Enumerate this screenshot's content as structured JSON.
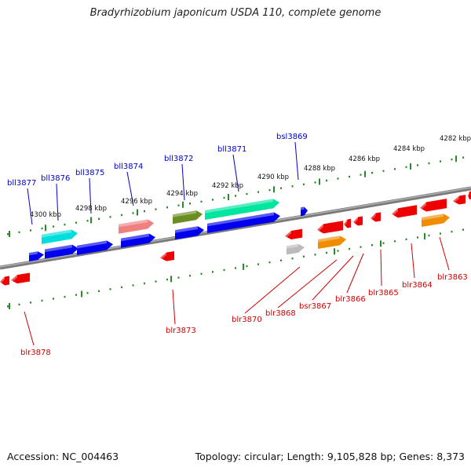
{
  "title": "Bradyrhizobium japonicum USDA 110, complete genome",
  "footer": {
    "accession": "Accession: NC_004463",
    "stats": "Topology: circular; Length: 9,105,828 bp; Genes: 8,373"
  },
  "colors": {
    "backbone": "#8a8a8a",
    "tick_major": "#2a8a2a",
    "tick_minor": "#2a8a2a",
    "label_forward": "#0000cc",
    "label_reverse": "#cc0000",
    "gene_blue": "#0000ee",
    "gene_red": "#ee0000",
    "gene_cyan": "#00dddd",
    "gene_pink": "#f08080",
    "gene_olive": "#6b8e23",
    "gene_mint": "#00e5a0",
    "gene_gray": "#bbbbbb",
    "gene_orange": "#f08c00"
  },
  "scale_labels": [
    "4282 kbp",
    "4284 kbp",
    "4286 kbp",
    "4288 kbp",
    "4290 kbp",
    "4292 kbp",
    "4294 kbp",
    "4296 kbp",
    "4298 kbp",
    "4300 kbp"
  ],
  "gene_labels": {
    "forward": [
      "bsl3869",
      "bll3871",
      "bll3872",
      "bll3874",
      "bll3875",
      "bll3876",
      "bll3877"
    ],
    "reverse": [
      "blr3863",
      "blr3864",
      "blr3865",
      "blr3866",
      "bsr3867",
      "blr3868",
      "blr3870",
      "blr3873",
      "blr3878"
    ]
  }
}
